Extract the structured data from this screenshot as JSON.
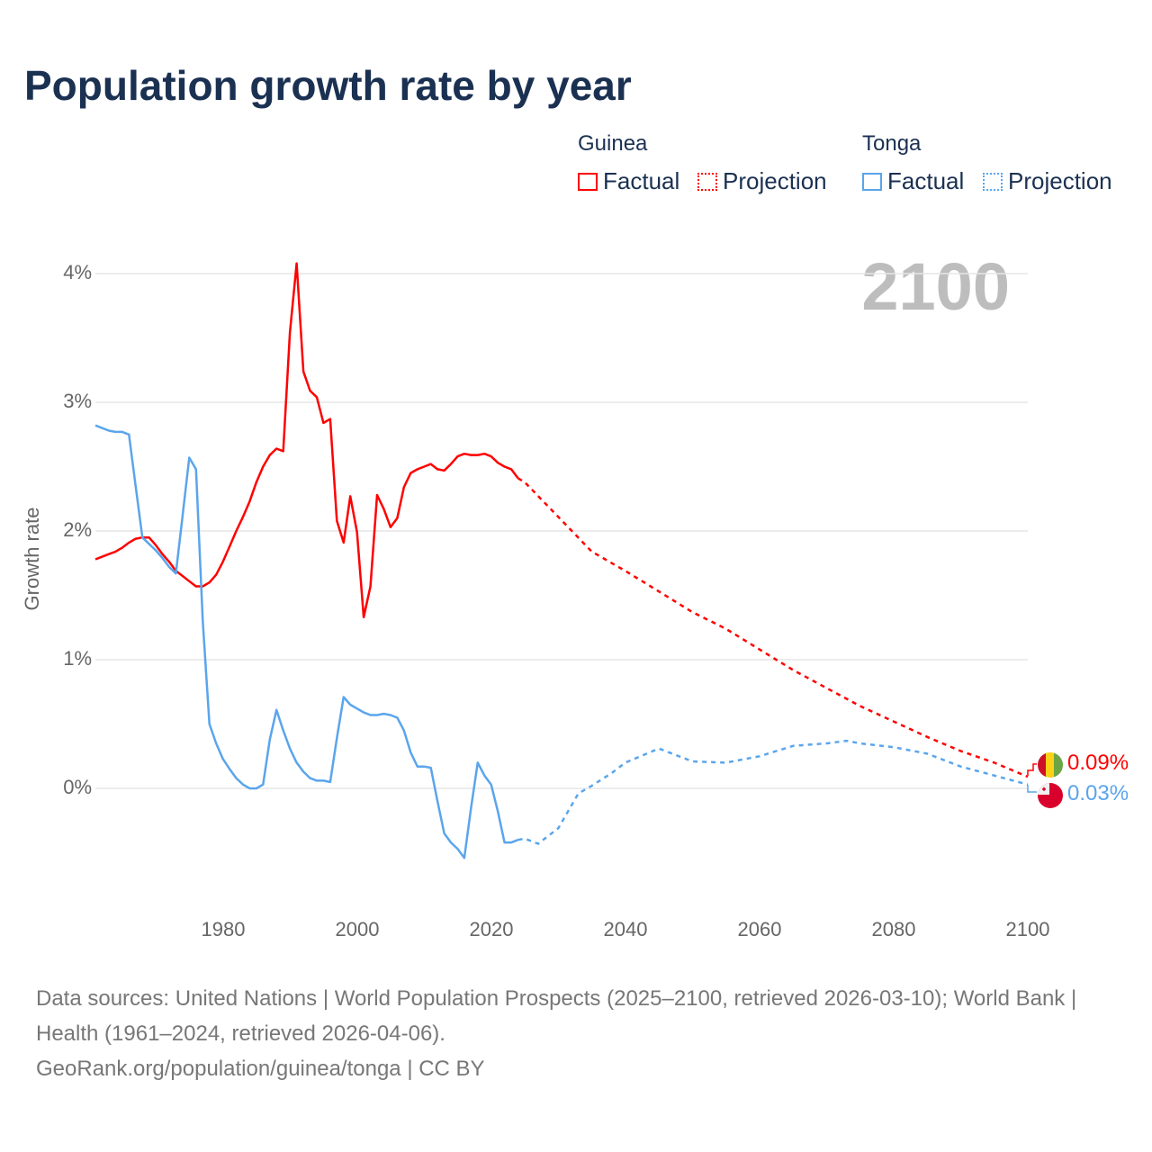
{
  "title": "Population growth rate by year",
  "legend": {
    "groups": [
      {
        "country": "Guinea",
        "factual": "Factual",
        "projection": "Projection",
        "color": "#ff0000"
      },
      {
        "country": "Tonga",
        "factual": "Factual",
        "projection": "Projection",
        "color": "#5aa5ec"
      }
    ]
  },
  "current_year": "2100",
  "end_labels": {
    "guinea": "0.09%",
    "tonga": "0.03%"
  },
  "footer": {
    "sources": "Data sources: United Nations | World Population Prospects (2025–2100, retrieved 2026-03-10); World Bank | Health (1961–2024, retrieved 2026-04-06).",
    "credit": "GeoRank.org/population/guinea/tonga | CC BY"
  },
  "chart_data": {
    "type": "line",
    "title": "Population growth rate by year",
    "xlabel": "",
    "ylabel": "Growth rate",
    "xlim": [
      1961,
      2100
    ],
    "ylim": [
      -0.9,
      4.1
    ],
    "x_ticks": [
      "1980",
      "2000",
      "2020",
      "2040",
      "2060",
      "2080",
      "2100"
    ],
    "x_tick_values": [
      1980,
      2000,
      2020,
      2040,
      2060,
      2080,
      2100
    ],
    "y_ticks": [
      "0%",
      "1%",
      "2%",
      "3%",
      "4%"
    ],
    "y_tick_values": [
      0,
      1,
      2,
      3,
      4
    ],
    "grid": true,
    "legend_position": "top-right",
    "series": [
      {
        "name": "Guinea Factual",
        "color": "#ff0000",
        "dashed": false,
        "start_year": 1961,
        "values": [
          1.78,
          1.8,
          1.82,
          1.84,
          1.87,
          1.91,
          1.94,
          1.95,
          1.95,
          1.89,
          1.82,
          1.76,
          1.69,
          1.65,
          1.61,
          1.57,
          1.57,
          1.6,
          1.66,
          1.76,
          1.88,
          2.0,
          2.11,
          2.23,
          2.38,
          2.5,
          2.59,
          2.64,
          2.62,
          3.54,
          4.08,
          3.24,
          3.09,
          3.04,
          2.84,
          2.87,
          2.08,
          1.91,
          2.27,
          1.99,
          1.33,
          1.57,
          2.28,
          2.17,
          2.03,
          2.1,
          2.34,
          2.45,
          2.48,
          2.5,
          2.52,
          2.48,
          2.47,
          2.52,
          2.58,
          2.6,
          2.59,
          2.59,
          2.6,
          2.58,
          2.53,
          2.5,
          2.48,
          2.41
        ]
      },
      {
        "name": "Guinea Projection",
        "color": "#ff0000",
        "dashed": true,
        "x": [
          2024,
          2025,
          2030,
          2035,
          2040,
          2045,
          2050,
          2055,
          2060,
          2065,
          2070,
          2075,
          2080,
          2085,
          2090,
          2095,
          2100
        ],
        "values": [
          2.41,
          2.38,
          2.11,
          1.84,
          1.69,
          1.53,
          1.37,
          1.24,
          1.08,
          0.92,
          0.78,
          0.64,
          0.52,
          0.4,
          0.29,
          0.2,
          0.09
        ]
      },
      {
        "name": "Tonga Factual",
        "color": "#5aa5ec",
        "dashed": false,
        "start_year": 1961,
        "values": [
          2.82,
          2.8,
          2.78,
          2.77,
          2.77,
          2.75,
          2.35,
          1.95,
          1.9,
          1.85,
          1.79,
          1.72,
          1.67,
          2.12,
          2.57,
          2.48,
          1.3,
          0.5,
          0.35,
          0.23,
          0.15,
          0.08,
          0.03,
          0.0,
          0.0,
          0.03,
          0.38,
          0.61,
          0.45,
          0.31,
          0.2,
          0.13,
          0.08,
          0.06,
          0.06,
          0.05,
          0.39,
          0.71,
          0.65,
          0.62,
          0.59,
          0.57,
          0.57,
          0.58,
          0.57,
          0.55,
          0.45,
          0.28,
          0.17,
          0.17,
          0.16,
          -0.1,
          -0.35,
          -0.42,
          -0.47,
          -0.54,
          -0.15,
          0.2,
          0.1,
          0.03,
          -0.18,
          -0.42,
          -0.42,
          -0.4
        ]
      },
      {
        "name": "Tonga Projection",
        "color": "#5aa5ec",
        "dashed": true,
        "x": [
          2024,
          2025,
          2027,
          2030,
          2033,
          2035,
          2038,
          2040,
          2045,
          2050,
          2055,
          2060,
          2065,
          2070,
          2073,
          2075,
          2080,
          2085,
          2090,
          2095,
          2100
        ],
        "values": [
          -0.4,
          -0.39,
          -0.43,
          -0.31,
          -0.04,
          0.02,
          0.12,
          0.2,
          0.31,
          0.21,
          0.2,
          0.25,
          0.33,
          0.35,
          0.37,
          0.35,
          0.32,
          0.27,
          0.17,
          0.1,
          0.03
        ]
      }
    ]
  }
}
